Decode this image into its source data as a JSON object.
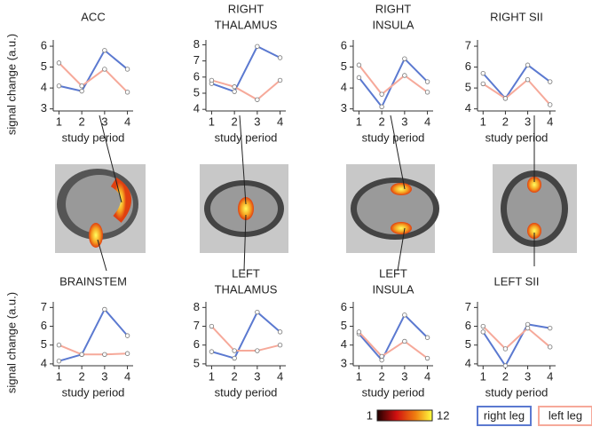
{
  "chart_data": [
    {
      "type": "line",
      "title": [
        "ACC"
      ],
      "ylabel": "signal change (a.u.)",
      "xlabel": "study period",
      "x": [
        1,
        2,
        3,
        4
      ],
      "xlim": [
        0.75,
        4.25
      ],
      "xticks": [
        1,
        2,
        3,
        4
      ],
      "ylim": [
        2.9,
        6.3
      ],
      "yticks": [
        3,
        4,
        5,
        6
      ],
      "series": [
        {
          "color": "#5b79d0",
          "values": [
            4.1,
            3.85,
            5.8,
            4.9
          ]
        },
        {
          "color": "#f6a99a",
          "values": [
            5.2,
            4.1,
            4.9,
            3.8
          ]
        }
      ]
    },
    {
      "type": "line",
      "title": [
        "RIGHT",
        "THALAMUS"
      ],
      "xlabel": "study period",
      "x": [
        1,
        2,
        3,
        4
      ],
      "xlim": [
        0.75,
        4.25
      ],
      "xticks": [
        1,
        2,
        3,
        4
      ],
      "ylim": [
        3.9,
        8.3
      ],
      "yticks": [
        4,
        5,
        6,
        7,
        8
      ],
      "series": [
        {
          "color": "#5b79d0",
          "values": [
            5.6,
            5.1,
            7.9,
            7.2
          ]
        },
        {
          "color": "#f6a99a",
          "values": [
            5.8,
            5.4,
            4.6,
            5.8
          ]
        }
      ]
    },
    {
      "type": "line",
      "title": [
        "RIGHT",
        "INSULA"
      ],
      "xlabel": "study period",
      "x": [
        1,
        2,
        3,
        4
      ],
      "xlim": [
        0.75,
        4.25
      ],
      "xticks": [
        1,
        2,
        3,
        4
      ],
      "ylim": [
        2.9,
        6.3
      ],
      "yticks": [
        3,
        4,
        5,
        6
      ],
      "series": [
        {
          "color": "#5b79d0",
          "values": [
            4.5,
            3.1,
            5.4,
            4.3
          ]
        },
        {
          "color": "#f6a99a",
          "values": [
            5.1,
            3.7,
            4.6,
            3.8
          ]
        }
      ]
    },
    {
      "type": "line",
      "title": [
        "RIGHT SII"
      ],
      "xlabel": "study period",
      "x": [
        1,
        2,
        3,
        4
      ],
      "xlim": [
        0.75,
        4.25
      ],
      "xticks": [
        1,
        2,
        3,
        4
      ],
      "ylim": [
        3.9,
        7.3
      ],
      "yticks": [
        4,
        5,
        6,
        7
      ],
      "series": [
        {
          "color": "#5b79d0",
          "values": [
            5.7,
            4.5,
            6.1,
            5.3
          ]
        },
        {
          "color": "#f6a99a",
          "values": [
            5.2,
            4.5,
            5.4,
            4.2
          ]
        }
      ]
    },
    {
      "type": "line",
      "title": [
        "BRAINSTEM"
      ],
      "ylabel": "signal change (a.u.)",
      "xlabel": "study period",
      "x": [
        1,
        2,
        3,
        4
      ],
      "xlim": [
        0.75,
        4.25
      ],
      "xticks": [
        1,
        2,
        3,
        4
      ],
      "ylim": [
        3.9,
        7.3
      ],
      "yticks": [
        4,
        5,
        6,
        7
      ],
      "series": [
        {
          "color": "#5b79d0",
          "values": [
            4.15,
            4.5,
            6.9,
            5.5
          ]
        },
        {
          "color": "#f6a99a",
          "values": [
            5.0,
            4.5,
            4.5,
            4.55
          ]
        }
      ]
    },
    {
      "type": "line",
      "title": [
        "LEFT",
        "THALAMUS"
      ],
      "xlabel": "study period",
      "x": [
        1,
        2,
        3,
        4
      ],
      "xlim": [
        0.75,
        4.25
      ],
      "xticks": [
        1,
        2,
        3,
        4
      ],
      "ylim": [
        4.9,
        8.3
      ],
      "yticks": [
        5,
        6,
        7,
        8
      ],
      "series": [
        {
          "color": "#5b79d0",
          "values": [
            5.65,
            5.3,
            7.75,
            6.7
          ]
        },
        {
          "color": "#f6a99a",
          "values": [
            7.0,
            5.7,
            5.7,
            6.0
          ]
        }
      ]
    },
    {
      "type": "line",
      "title": [
        "LEFT",
        "INSULA"
      ],
      "xlabel": "study period",
      "x": [
        1,
        2,
        3,
        4
      ],
      "xlim": [
        0.75,
        4.25
      ],
      "xticks": [
        1,
        2,
        3,
        4
      ],
      "ylim": [
        2.9,
        6.3
      ],
      "yticks": [
        3,
        4,
        5,
        6
      ],
      "series": [
        {
          "color": "#5b79d0",
          "values": [
            4.6,
            3.2,
            5.6,
            4.4
          ]
        },
        {
          "color": "#f6a99a",
          "values": [
            4.7,
            3.4,
            4.2,
            3.3
          ]
        }
      ]
    },
    {
      "type": "line",
      "title": [
        "LEFT SII"
      ],
      "xlabel": "study period",
      "x": [
        1,
        2,
        3,
        4
      ],
      "xlim": [
        0.75,
        4.25
      ],
      "xticks": [
        1,
        2,
        3,
        4
      ],
      "ylim": [
        3.9,
        7.3
      ],
      "yticks": [
        4,
        5,
        6,
        7
      ],
      "legend": true,
      "series": [
        {
          "name": "right leg",
          "color": "#5b79d0",
          "values": [
            5.7,
            3.9,
            6.1,
            5.9
          ]
        },
        {
          "name": "left leg",
          "color": "#f6a99a",
          "values": [
            6.0,
            4.8,
            5.9,
            4.9
          ]
        }
      ]
    }
  ],
  "colorbar": {
    "range": [
      1,
      12
    ],
    "ticks": [
      1,
      12
    ]
  }
}
